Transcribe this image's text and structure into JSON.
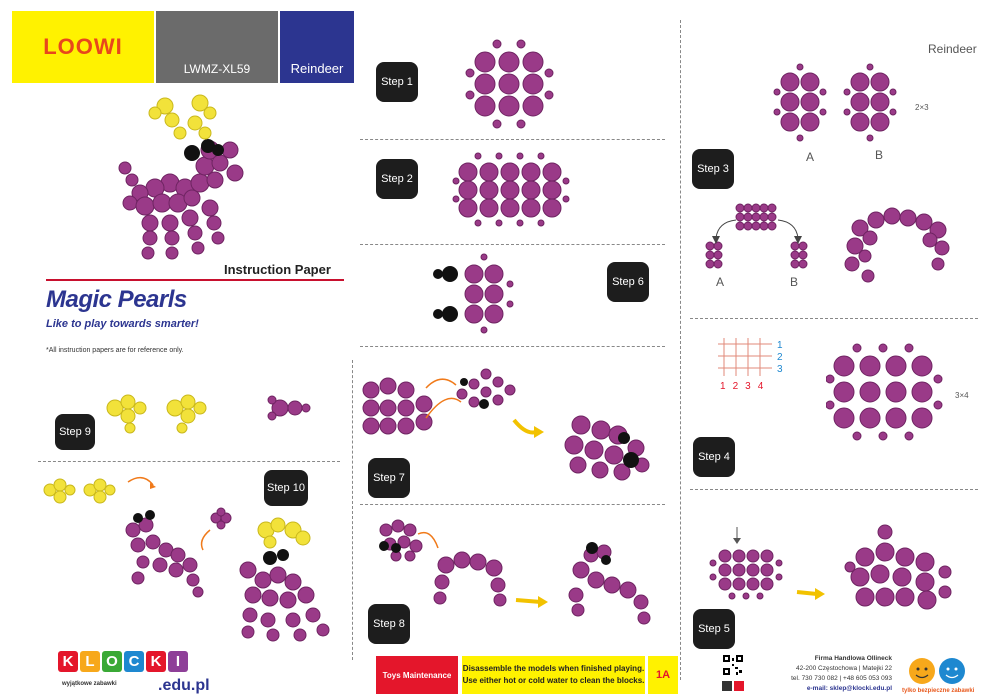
{
  "header": {
    "logo": "LOOWI",
    "model": "LWMZ-XL59",
    "name": "Reindeer"
  },
  "top_right_label": "Reindeer",
  "instruction_title": "Instruction Paper",
  "brand_title": "Magic Pearls",
  "tagline": "Like to play towards smarter!",
  "note": "*All instruction papers are for reference only.",
  "steps": {
    "s1": "Step 1",
    "s2": "Step 2",
    "s3": "Step 3",
    "s4": "Step 4",
    "s5": "Step 5",
    "s6": "Step 6",
    "s7": "Step 7",
    "s8": "Step 8",
    "s9": "Step 9",
    "s10": "Step 10"
  },
  "step3": {
    "label_a": "A",
    "label_b": "B",
    "dims": "2×3",
    "label_a2": "A",
    "label_b2": "B"
  },
  "step4": {
    "dims": "3×4",
    "cols": [
      "1",
      "2",
      "3",
      "4"
    ],
    "rows": [
      "1",
      "2",
      "3"
    ]
  },
  "maintenance": {
    "title": "Toys Maintenance",
    "line1": "Disassemble the models when finished playing.",
    "line2": "Use either hot or cold water to clean the blocks.",
    "code": "1A"
  },
  "footer": {
    "klocki_letters": [
      "K",
      "L",
      "O",
      "C",
      "K",
      "I"
    ],
    "klocki_colors": [
      "#e4162b",
      "#f7a81b",
      "#3aa935",
      "#1e88d0",
      "#e4162b",
      "#8e3f98"
    ],
    "klocki_sub": "wyjątkowe zabawki",
    "klocki_domain": ".edu.pl",
    "company_line1": "Firma Handlowa Ollineck",
    "company_line2": "42-200 Częstochowa | Matejki 22",
    "company_line3": "tel. 730 730 082 | +48 605 053 093",
    "company_line4": "e-mail: sklep@klocki.edu.pl",
    "tylko": "tylko bezpieczne zabawki"
  },
  "colors": {
    "bead": "#9a3a88",
    "bead_dark": "#6f2462",
    "bead_yellow": "#f2e23a",
    "bead_black": "#111111",
    "accent_red": "#c8102e",
    "navy": "#2c3590",
    "gray_tile": "#6b6b6b",
    "yellow_tile": "#fff200"
  }
}
